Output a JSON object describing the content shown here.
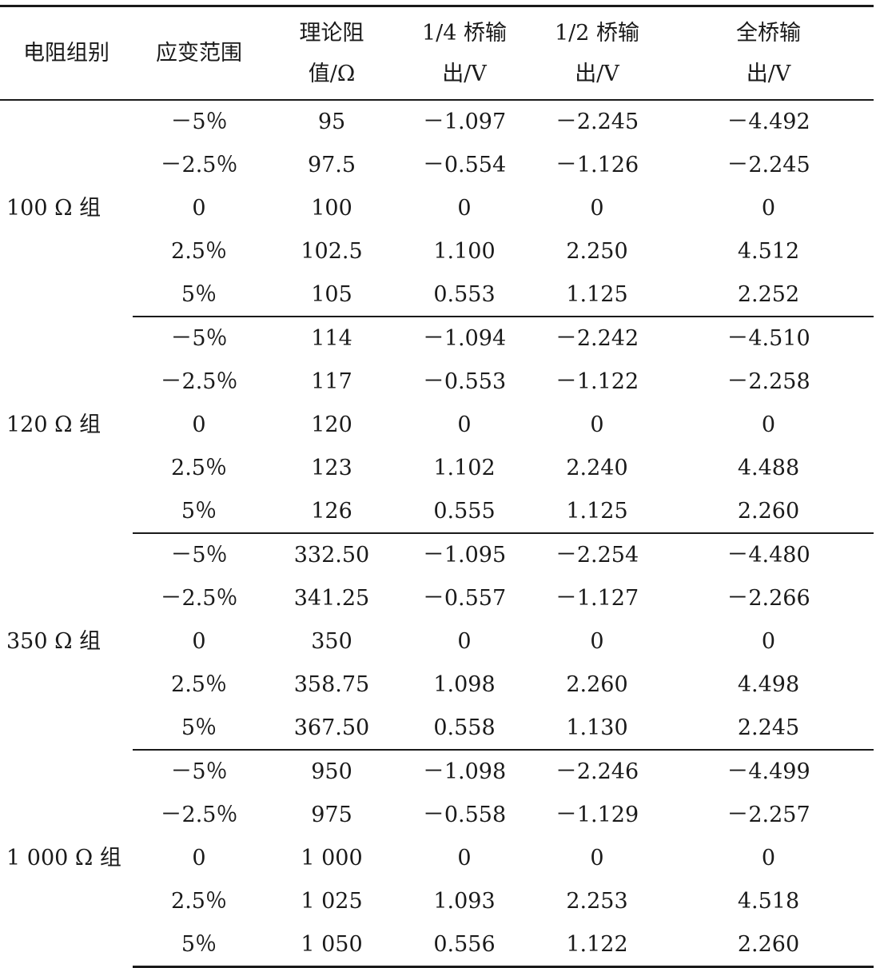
{
  "table": {
    "headers": [
      {
        "line1": "电阻组别",
        "line2": ""
      },
      {
        "line1": "应变范围",
        "line2": ""
      },
      {
        "line1": "理论阻",
        "line2": "值/Ω"
      },
      {
        "line1": "1/4 桥输",
        "line2": "出/V"
      },
      {
        "line1": "1/2 桥输",
        "line2": "出/V"
      },
      {
        "line1": "全桥输",
        "line2": "出/V"
      }
    ],
    "groups": [
      {
        "label": "100 Ω 组",
        "rows": [
          [
            "－5％",
            "95",
            "－1.097",
            "－2.245",
            "－4.492"
          ],
          [
            "－2.5％",
            "97.5",
            "－0.554",
            "－1.126",
            "－2.245"
          ],
          [
            "0",
            "100",
            "0",
            "0",
            "0"
          ],
          [
            "2.5％",
            "102.5",
            "1.100",
            "2.250",
            "4.512"
          ],
          [
            "5％",
            "105",
            "0.553",
            "1.125",
            "2.252"
          ]
        ]
      },
      {
        "label": "120 Ω 组",
        "rows": [
          [
            "－5％",
            "114",
            "－1.094",
            "－2.242",
            "－4.510"
          ],
          [
            "－2.5％",
            "117",
            "－0.553",
            "－1.122",
            "－2.258"
          ],
          [
            "0",
            "120",
            "0",
            "0",
            "0"
          ],
          [
            "2.5％",
            "123",
            "1.102",
            "2.240",
            "4.488"
          ],
          [
            "5％",
            "126",
            "0.555",
            "1.125",
            "2.260"
          ]
        ]
      },
      {
        "label": "350 Ω 组",
        "rows": [
          [
            "－5％",
            "332.50",
            "－1.095",
            "－2.254",
            "－4.480"
          ],
          [
            "－2.5％",
            "341.25",
            "－0.557",
            "－1.127",
            "－2.266"
          ],
          [
            "0",
            "350",
            "0",
            "0",
            "0"
          ],
          [
            "2.5％",
            "358.75",
            "1.098",
            "2.260",
            "4.498"
          ],
          [
            "5％",
            "367.50",
            "0.558",
            "1.130",
            "2.245"
          ]
        ]
      },
      {
        "label": "1 000 Ω 组",
        "rows": [
          [
            "－5％",
            "950",
            "－1.098",
            "－2.246",
            "－4.499"
          ],
          [
            "－2.5％",
            "975",
            "－0.558",
            "－1.129",
            "－2.257"
          ],
          [
            "0",
            "1 000",
            "0",
            "0",
            "0"
          ],
          [
            "2.5％",
            "1 025",
            "1.093",
            "2.253",
            "4.518"
          ],
          [
            "5％",
            "1 050",
            "0.556",
            "1.122",
            "2.260"
          ]
        ]
      }
    ]
  }
}
